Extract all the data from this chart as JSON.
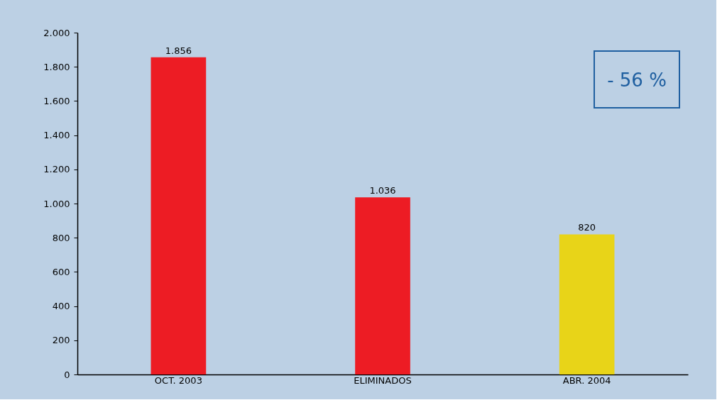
{
  "chart_data": {
    "type": "bar",
    "categories": [
      "OCT. 2003",
      "ELIMINADOS",
      "ABR. 2004"
    ],
    "values": [
      1856,
      1036,
      820
    ],
    "colors": [
      "#ed1c24",
      "#ed1c24",
      "#e8d418"
    ],
    "value_labels": [
      "1.856",
      "1.036",
      "820"
    ],
    "ylim": [
      0,
      2000
    ],
    "yticks": [
      {
        "value": 0,
        "label": "0"
      },
      {
        "value": 200,
        "label": "200"
      },
      {
        "value": 400,
        "label": "400"
      },
      {
        "value": 600,
        "label": "600"
      },
      {
        "value": 800,
        "label": "800"
      },
      {
        "value": 1000,
        "label": "1.000"
      },
      {
        "value": 1200,
        "label": "1.200"
      },
      {
        "value": 1400,
        "label": "1.400"
      },
      {
        "value": 1600,
        "label": "1.600"
      },
      {
        "value": 1800,
        "label": "1.800"
      },
      {
        "value": 2000,
        "label": "2.000"
      }
    ],
    "annotations": [
      "- 56 %"
    ],
    "grid": false
  }
}
